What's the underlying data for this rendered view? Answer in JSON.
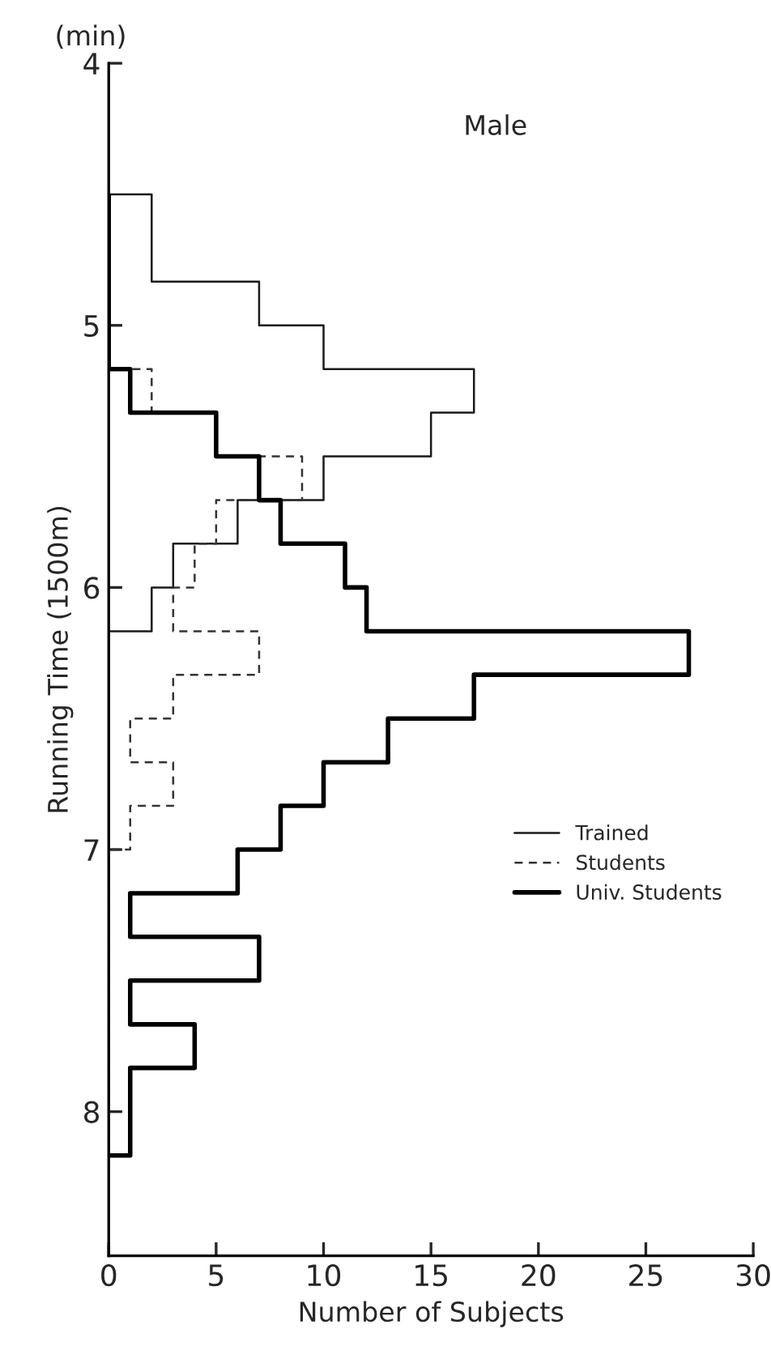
{
  "chart_data": {
    "type": "histogram",
    "orientation": "horizontal",
    "title": "Male",
    "xlabel": "Number of Subjects",
    "ylabel": "Running Time (1500m)",
    "annotations": [
      "(min)"
    ],
    "bins": [
      4.5,
      4.667,
      4.833,
      5,
      5.167,
      5.333,
      5.5,
      5.667,
      5.833,
      6,
      6.167,
      6.333,
      6.5,
      6.667,
      6.833,
      7,
      7.167,
      7.333,
      7.5,
      7.667,
      7.833,
      8,
      8.167
    ],
    "series": [
      {
        "name": "Trained",
        "color": "#1a1a1a",
        "line_style": "solid",
        "values": [
          2,
          2,
          7,
          10,
          17,
          15,
          10,
          6,
          3,
          2,
          0,
          0,
          0,
          0,
          0,
          0,
          0,
          0,
          0,
          0,
          0,
          0
        ]
      },
      {
        "name": "Students",
        "color": "#333333",
        "line_style": "dashed",
        "values": [
          0,
          0,
          0,
          0,
          2,
          5,
          9,
          5,
          4,
          3,
          7,
          3,
          1,
          3,
          1,
          0,
          0,
          0,
          0,
          0,
          0,
          0
        ]
      },
      {
        "name": "Univ. Students",
        "color": "#000000",
        "line_style": "solid",
        "values": [
          0,
          0,
          0,
          0,
          1,
          5,
          7,
          8,
          11,
          12,
          27,
          17,
          13,
          10,
          8,
          6,
          1,
          7,
          1,
          4,
          1,
          1
        ]
      }
    ],
    "xlim": [
      0,
      30
    ],
    "xticks": [
      0,
      5,
      10,
      15,
      20,
      25,
      30
    ],
    "ylim": [
      8.55,
      4
    ],
    "yticks": [
      4,
      5,
      6,
      7,
      8
    ],
    "grid": false,
    "legend": "bottom right"
  }
}
